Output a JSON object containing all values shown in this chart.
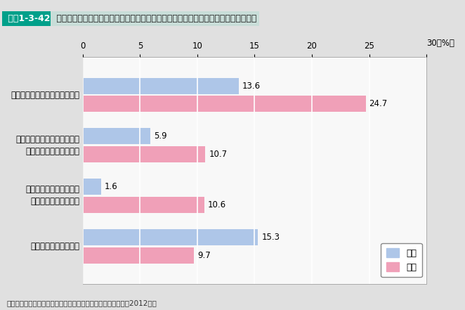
{
  "title_box_label": "図表1-3-42",
  "title_text": "理想とする子どもの数より現実的に持つつもりの子どもの数が少ない理由（男女別）",
  "categories": [
    "欲しいけれども妊娠しないから",
    "妊娠・出産のときの身体的・\n精神的な苦痛が嫌だから",
    "配偶者の家事・育児への\n協力が得られないから",
    "配偶者が望まないから"
  ],
  "male_values": [
    13.6,
    5.9,
    1.6,
    15.3
  ],
  "female_values": [
    24.7,
    10.7,
    10.6,
    9.7
  ],
  "male_color": "#aec6e8",
  "female_color": "#f0a0b8",
  "xlim": [
    0,
    30
  ],
  "xticks": [
    0,
    5,
    10,
    15,
    20,
    25,
    30
  ],
  "xlabel_unit": "30（%）",
  "background_color": "#e0e0e0",
  "plot_background_color": "#f8f8f8",
  "footer": "資料：内閣府「少子化と夫婦の生活環境に関する意識調査」（2012年）",
  "legend_labels": [
    "男性",
    "女性"
  ],
  "title_box_color": "#00a08a",
  "title_bg_color": "#d8eae8",
  "bar_height": 0.32,
  "value_fontsize": 8.5,
  "label_fontsize": 8.5,
  "tick_fontsize": 8.5
}
